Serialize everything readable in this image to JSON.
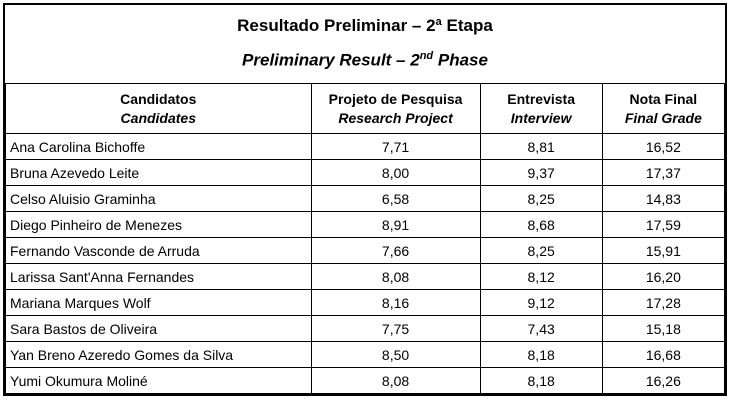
{
  "colors": {
    "border": "#000000",
    "background": "#ffffff",
    "text": "#000000"
  },
  "title": {
    "line1": "Resultado Preliminar – 2ª Etapa",
    "line2_prefix": "Preliminary Result – 2",
    "line2_sup": "nd",
    "line2_suffix": " Phase"
  },
  "header": {
    "candidates_pt": "Candidatos",
    "candidates_en": "Candidates",
    "research_pt": "Projeto de Pesquisa",
    "research_en": "Research Project",
    "interview_pt": "Entrevista",
    "interview_en": "Interview",
    "final_pt": "Nota Final",
    "final_en": "Final Grade"
  },
  "rows": [
    {
      "name": "Ana Carolina Bichoffe",
      "research": "7,71",
      "interview": "8,81",
      "final": "16,52"
    },
    {
      "name": "Bruna Azevedo Leite",
      "research": "8,00",
      "interview": "9,37",
      "final": "17,37"
    },
    {
      "name": "Celso Aluisio Graminha",
      "research": "6,58",
      "interview": "8,25",
      "final": "14,83"
    },
    {
      "name": "Diego Pinheiro de Menezes",
      "research": "8,91",
      "interview": "8,68",
      "final": "17,59"
    },
    {
      "name": "Fernando Vasconde de Arruda",
      "research": "7,66",
      "interview": "8,25",
      "final": "15,91"
    },
    {
      "name": "Larissa Sant'Anna Fernandes",
      "research": "8,08",
      "interview": "8,12",
      "final": "16,20"
    },
    {
      "name": "Mariana Marques Wolf",
      "research": "8,16",
      "interview": "9,12",
      "final": "17,28"
    },
    {
      "name": "Sara Bastos de Oliveira",
      "research": "7,75",
      "interview": "7,43",
      "final": "15,18"
    },
    {
      "name": "Yan Breno Azeredo Gomes da Silva",
      "research": "8,50",
      "interview": "8,18",
      "final": "16,68"
    },
    {
      "name": "Yumi Okumura Moliné",
      "research": "8,08",
      "interview": "8,18",
      "final": "16,26"
    }
  ]
}
